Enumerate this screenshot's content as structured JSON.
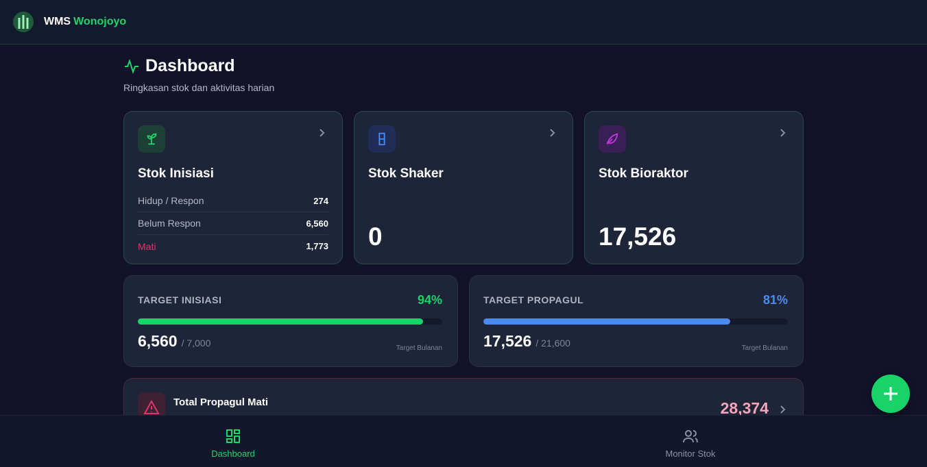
{
  "header": {
    "brand": "WMS",
    "brand_accent": "Wonojoyo"
  },
  "page": {
    "title": "Dashboard",
    "subtitle": "Ringkasan stok dan aktivitas harian"
  },
  "stock_cards": [
    {
      "title": "Stok Inisiasi",
      "rows": [
        {
          "label": "Hidup / Respon",
          "value": "274"
        },
        {
          "label": "Belum Respon",
          "value": "6,560"
        },
        {
          "label": "Mati",
          "value": "1,773"
        }
      ]
    },
    {
      "title": "Stok Shaker",
      "value": "0"
    },
    {
      "title": "Stok Bioraktor",
      "value": "17,526"
    }
  ],
  "target_cards": [
    {
      "title": "TARGET INISIASI",
      "percent": "94%",
      "current": {
        "value": 6560,
        "label": "6,560"
      },
      "target": {
        "value": 7000,
        "label": "/ 7,000"
      },
      "note": "Target Bulanan",
      "color": "#17d46a"
    },
    {
      "title": "TARGET PROPAGUL",
      "percent": "81%",
      "current": {
        "value": 17526,
        "label": "17,526"
      },
      "target": {
        "value": 21600,
        "label": "/ 21,600"
      },
      "note": "Target Bulanan",
      "color": "#4b8bf0"
    }
  ],
  "alert_card": {
    "title": "Total Propagul Mati",
    "value": "28,374"
  },
  "nav": [
    {
      "label": "Dashboard"
    },
    {
      "label": "Monitor Stok"
    }
  ]
}
